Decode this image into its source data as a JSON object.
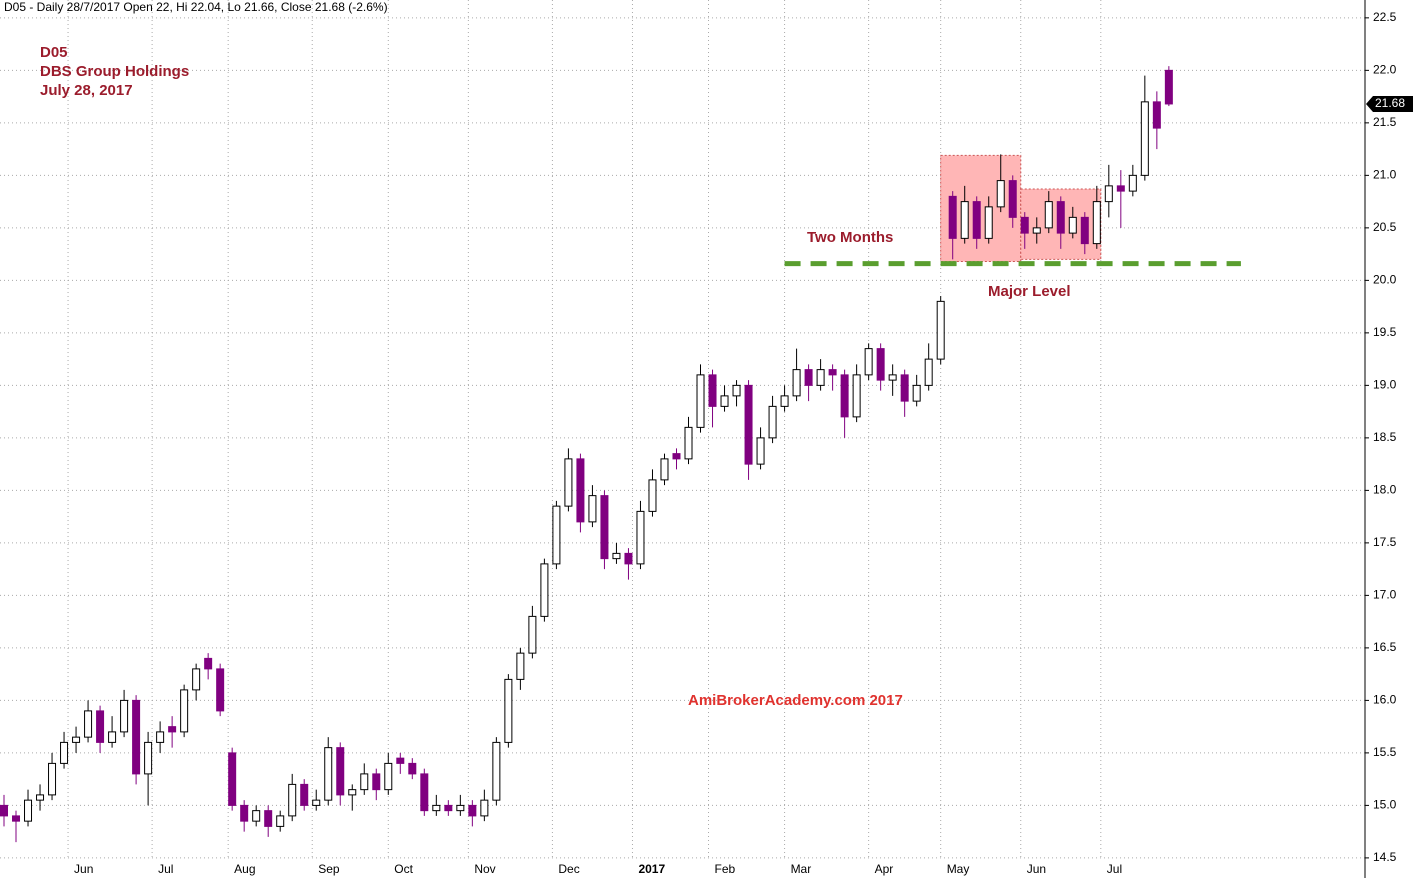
{
  "chart_data": {
    "type": "candlestick",
    "title": "D05 - Daily 28/7/2017 Open 22, Hi 22.04, Lo 21.66, Close 21.68 (-2.6%)",
    "annotations": {
      "symbol": "D05",
      "company": "DBS Group Holdings",
      "date": "July 28, 2017",
      "box_label": "Two Months",
      "level_label": "Major Level",
      "watermark": "AmiBrokerAcademy.com  2017"
    },
    "up_color": "#ffffff",
    "down_color": "#800080",
    "grid": true,
    "xlim": [
      -1,
      340
    ],
    "ylim": [
      14.48,
      22.67
    ],
    "xticks": [
      {
        "value": 16,
        "label": "Jun"
      },
      {
        "value": 37,
        "label": "Jul"
      },
      {
        "value": 56,
        "label": "Aug"
      },
      {
        "value": 77,
        "label": "Sep"
      },
      {
        "value": 96,
        "label": "Oct"
      },
      {
        "value": 116,
        "label": "Nov"
      },
      {
        "value": 137,
        "label": "Dec"
      },
      {
        "value": 157,
        "label": "2017"
      },
      {
        "value": 176,
        "label": "Feb"
      },
      {
        "value": 195,
        "label": "Mar"
      },
      {
        "value": 216,
        "label": "Apr"
      },
      {
        "value": 234,
        "label": "May"
      },
      {
        "value": 254,
        "label": "Jun"
      },
      {
        "value": 274,
        "label": "Jul"
      }
    ],
    "yticks": [
      14.5,
      {
        "value": 15,
        "label": "15.0"
      },
      15.5,
      {
        "value": 16,
        "label": "16.0"
      },
      16.5,
      {
        "value": 17,
        "label": "17.0"
      },
      17.5,
      {
        "value": 18,
        "label": "18.0"
      },
      18.5,
      {
        "value": 19,
        "label": "19.0"
      },
      19.5,
      {
        "value": 20,
        "label": "20.0"
      },
      20.5,
      {
        "value": 21,
        "label": "21.0"
      },
      21.5,
      {
        "value": 22,
        "label": "22.0"
      },
      22.5
    ],
    "highlight_boxes": [
      {
        "x": [
          234,
          254
        ],
        "y": [
          20.18,
          21.19
        ],
        "color": "#ffb6b6"
      },
      {
        "x": [
          254,
          274
        ],
        "y": [
          20.2,
          20.87
        ],
        "color": "#ffb6b6"
      }
    ],
    "level": {
      "value": 20.16,
      "x": [
        195,
        309
      ],
      "color": "#5a9e2f"
    },
    "x": [
      0,
      3,
      6,
      9,
      12,
      15,
      18,
      21,
      24,
      27,
      30,
      33,
      36,
      39,
      42,
      45,
      48,
      51,
      54,
      57,
      60,
      63,
      66,
      69,
      72,
      75,
      78,
      81,
      84,
      87,
      90,
      93,
      96,
      99,
      102,
      105,
      108,
      111,
      114,
      117,
      120,
      123,
      126,
      129,
      132,
      135,
      138,
      141,
      144,
      147,
      150,
      153,
      156,
      159,
      162,
      165,
      168,
      171,
      174,
      177,
      180,
      183,
      186,
      189,
      192,
      195,
      198,
      201,
      204,
      207,
      210,
      213,
      216,
      219,
      222,
      225,
      228,
      231,
      234,
      237,
      240,
      243,
      246,
      249,
      252,
      255,
      258,
      261,
      264,
      267,
      270,
      273,
      276,
      279,
      282,
      285,
      288,
      291
    ],
    "open": [
      15.0,
      14.9,
      14.85,
      15.05,
      15.1,
      15.4,
      15.6,
      15.65,
      15.9,
      15.6,
      15.7,
      16.0,
      15.3,
      15.6,
      15.75,
      15.7,
      16.1,
      16.4,
      16.3,
      15.5,
      15.0,
      14.85,
      14.95,
      14.8,
      14.9,
      15.2,
      15.0,
      15.05,
      15.55,
      15.1,
      15.15,
      15.3,
      15.15,
      15.45,
      15.4,
      15.3,
      14.95,
      15.0,
      14.95,
      15.0,
      14.9,
      15.05,
      15.6,
      16.2,
      16.45,
      16.8,
      17.3,
      17.85,
      18.3,
      17.7,
      17.95,
      17.35,
      17.4,
      17.3,
      17.8,
      18.1,
      18.35,
      18.3,
      18.6,
      19.1,
      18.8,
      18.9,
      19.0,
      18.25,
      18.5,
      18.8,
      18.9,
      19.15,
      19.0,
      19.15,
      19.1,
      18.7,
      19.1,
      19.35,
      19.05,
      19.1,
      18.85,
      19.0,
      19.25,
      20.8,
      20.4,
      20.75,
      20.4,
      20.7,
      20.95,
      20.6,
      20.45,
      20.5,
      20.75,
      20.45,
      20.6,
      20.35,
      20.75,
      20.9,
      20.85,
      21.0,
      21.7,
      22.0
    ],
    "high": [
      15.1,
      14.95,
      15.15,
      15.2,
      15.5,
      15.7,
      15.75,
      16.0,
      15.95,
      15.85,
      16.1,
      16.05,
      15.7,
      15.8,
      15.85,
      16.15,
      16.35,
      16.45,
      16.35,
      15.55,
      15.05,
      15.0,
      15.0,
      14.95,
      15.3,
      15.25,
      15.15,
      15.65,
      15.6,
      15.2,
      15.4,
      15.35,
      15.5,
      15.5,
      15.45,
      15.35,
      15.1,
      15.05,
      15.1,
      15.05,
      15.15,
      15.65,
      16.25,
      16.5,
      16.9,
      17.35,
      17.9,
      18.4,
      18.35,
      18.05,
      18.0,
      17.5,
      17.45,
      17.9,
      18.2,
      18.35,
      18.4,
      18.7,
      19.2,
      19.15,
      19.0,
      19.05,
      19.05,
      18.6,
      18.9,
      19.0,
      19.35,
      19.2,
      19.25,
      19.2,
      19.15,
      19.2,
      19.4,
      19.4,
      19.2,
      19.15,
      19.1,
      19.4,
      19.85,
      20.85,
      20.9,
      20.8,
      20.8,
      21.2,
      21.0,
      20.65,
      20.6,
      20.85,
      20.8,
      20.7,
      20.65,
      20.9,
      21.1,
      21.05,
      21.1,
      21.95,
      21.8,
      22.04
    ],
    "low": [
      14.8,
      14.65,
      14.8,
      14.95,
      15.05,
      15.35,
      15.5,
      15.6,
      15.5,
      15.55,
      15.65,
      15.2,
      15.0,
      15.5,
      15.55,
      15.65,
      16.0,
      16.2,
      15.85,
      14.95,
      14.75,
      14.8,
      14.7,
      14.75,
      14.85,
      14.95,
      14.95,
      15.0,
      15.0,
      14.95,
      15.1,
      15.05,
      15.1,
      15.3,
      15.25,
      14.9,
      14.9,
      14.9,
      14.9,
      14.8,
      14.85,
      15.0,
      15.55,
      16.1,
      16.4,
      16.75,
      17.25,
      17.8,
      17.6,
      17.65,
      17.25,
      17.3,
      17.15,
      17.25,
      17.75,
      18.05,
      18.2,
      18.25,
      18.55,
      18.6,
      18.75,
      18.8,
      18.1,
      18.2,
      18.45,
      18.75,
      18.85,
      18.85,
      18.95,
      18.95,
      18.5,
      18.65,
      19.05,
      18.95,
      18.9,
      18.7,
      18.8,
      18.95,
      19.2,
      20.2,
      20.35,
      20.3,
      20.35,
      20.65,
      20.5,
      20.3,
      20.35,
      20.45,
      20.3,
      20.4,
      20.25,
      20.3,
      20.6,
      20.5,
      20.8,
      20.95,
      21.25,
      21.66
    ],
    "close": [
      14.9,
      14.85,
      15.05,
      15.1,
      15.4,
      15.6,
      15.65,
      15.9,
      15.6,
      15.7,
      16.0,
      15.3,
      15.6,
      15.7,
      15.7,
      16.1,
      16.3,
      16.3,
      15.9,
      15.0,
      14.85,
      14.95,
      14.8,
      14.9,
      15.2,
      15.0,
      15.05,
      15.55,
      15.1,
      15.15,
      15.3,
      15.15,
      15.4,
      15.4,
      15.3,
      14.95,
      15.0,
      14.95,
      15.0,
      14.9,
      15.05,
      15.6,
      16.2,
      16.45,
      16.8,
      17.3,
      17.85,
      18.3,
      17.7,
      17.95,
      17.35,
      17.4,
      17.3,
      17.8,
      18.1,
      18.3,
      18.3,
      18.6,
      19.1,
      18.8,
      18.9,
      19.0,
      18.25,
      18.5,
      18.8,
      18.9,
      19.15,
      19.0,
      19.15,
      19.1,
      18.7,
      19.1,
      19.35,
      19.05,
      19.1,
      18.85,
      19.0,
      19.25,
      19.8,
      20.4,
      20.75,
      20.4,
      20.7,
      20.95,
      20.6,
      20.45,
      20.5,
      20.75,
      20.45,
      20.6,
      20.35,
      20.75,
      20.9,
      20.85,
      21.0,
      21.7,
      21.45,
      21.68
    ]
  }
}
